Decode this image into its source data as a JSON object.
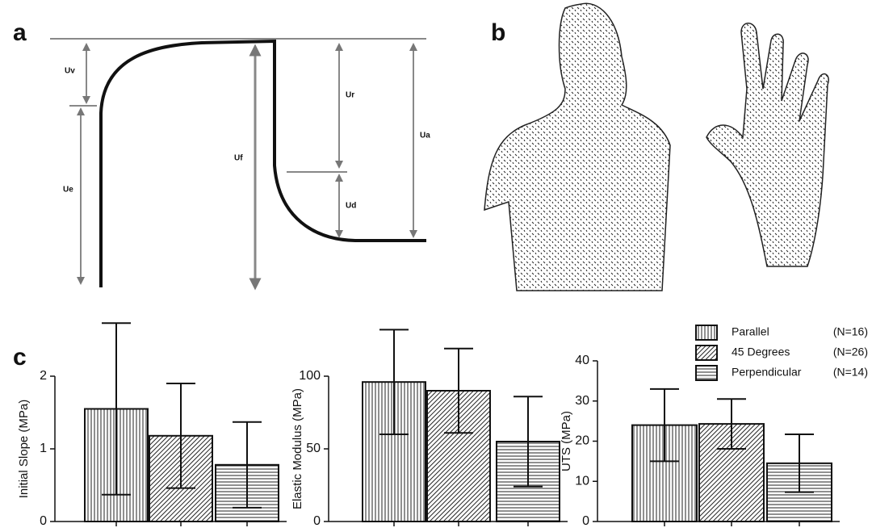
{
  "panels": {
    "a": {
      "label": "a",
      "labels": [
        "Uv",
        "Ue",
        "Uf",
        "Ur",
        "Ud",
        "Ua"
      ]
    },
    "b": {
      "label": "b"
    },
    "c": {
      "label": "c"
    }
  },
  "legend": [
    {
      "name": "Parallel",
      "note": "(N=16)",
      "pattern": "vertical"
    },
    {
      "name": "45 Degrees",
      "note": "(N=26)",
      "pattern": "diagonal"
    },
    {
      "name": "Perpendicular",
      "note": "(N=14)",
      "pattern": "horizontal"
    }
  ],
  "chart_data": [
    {
      "type": "bar",
      "y_label": "Initial Slope (MPa)",
      "values": [
        1.55,
        1.18,
        0.78
      ],
      "errors": [
        1.18,
        0.72,
        0.59
      ],
      "ylim": [
        0,
        2
      ],
      "yticks": [
        0,
        1,
        2
      ]
    },
    {
      "type": "bar",
      "y_label": "Elastic Modulus (MPa)",
      "values": [
        96,
        90,
        55
      ],
      "errors": [
        36,
        29,
        31
      ],
      "ylim": [
        0,
        100
      ],
      "yticks": [
        0,
        50,
        100
      ]
    },
    {
      "type": "bar",
      "y_label": "UTS (MPa)",
      "values": [
        24,
        24.3,
        14.5
      ],
      "errors": [
        9,
        6.2,
        7.2
      ],
      "ylim": [
        0,
        40
      ],
      "yticks": [
        0,
        10,
        20,
        30,
        40
      ]
    }
  ]
}
